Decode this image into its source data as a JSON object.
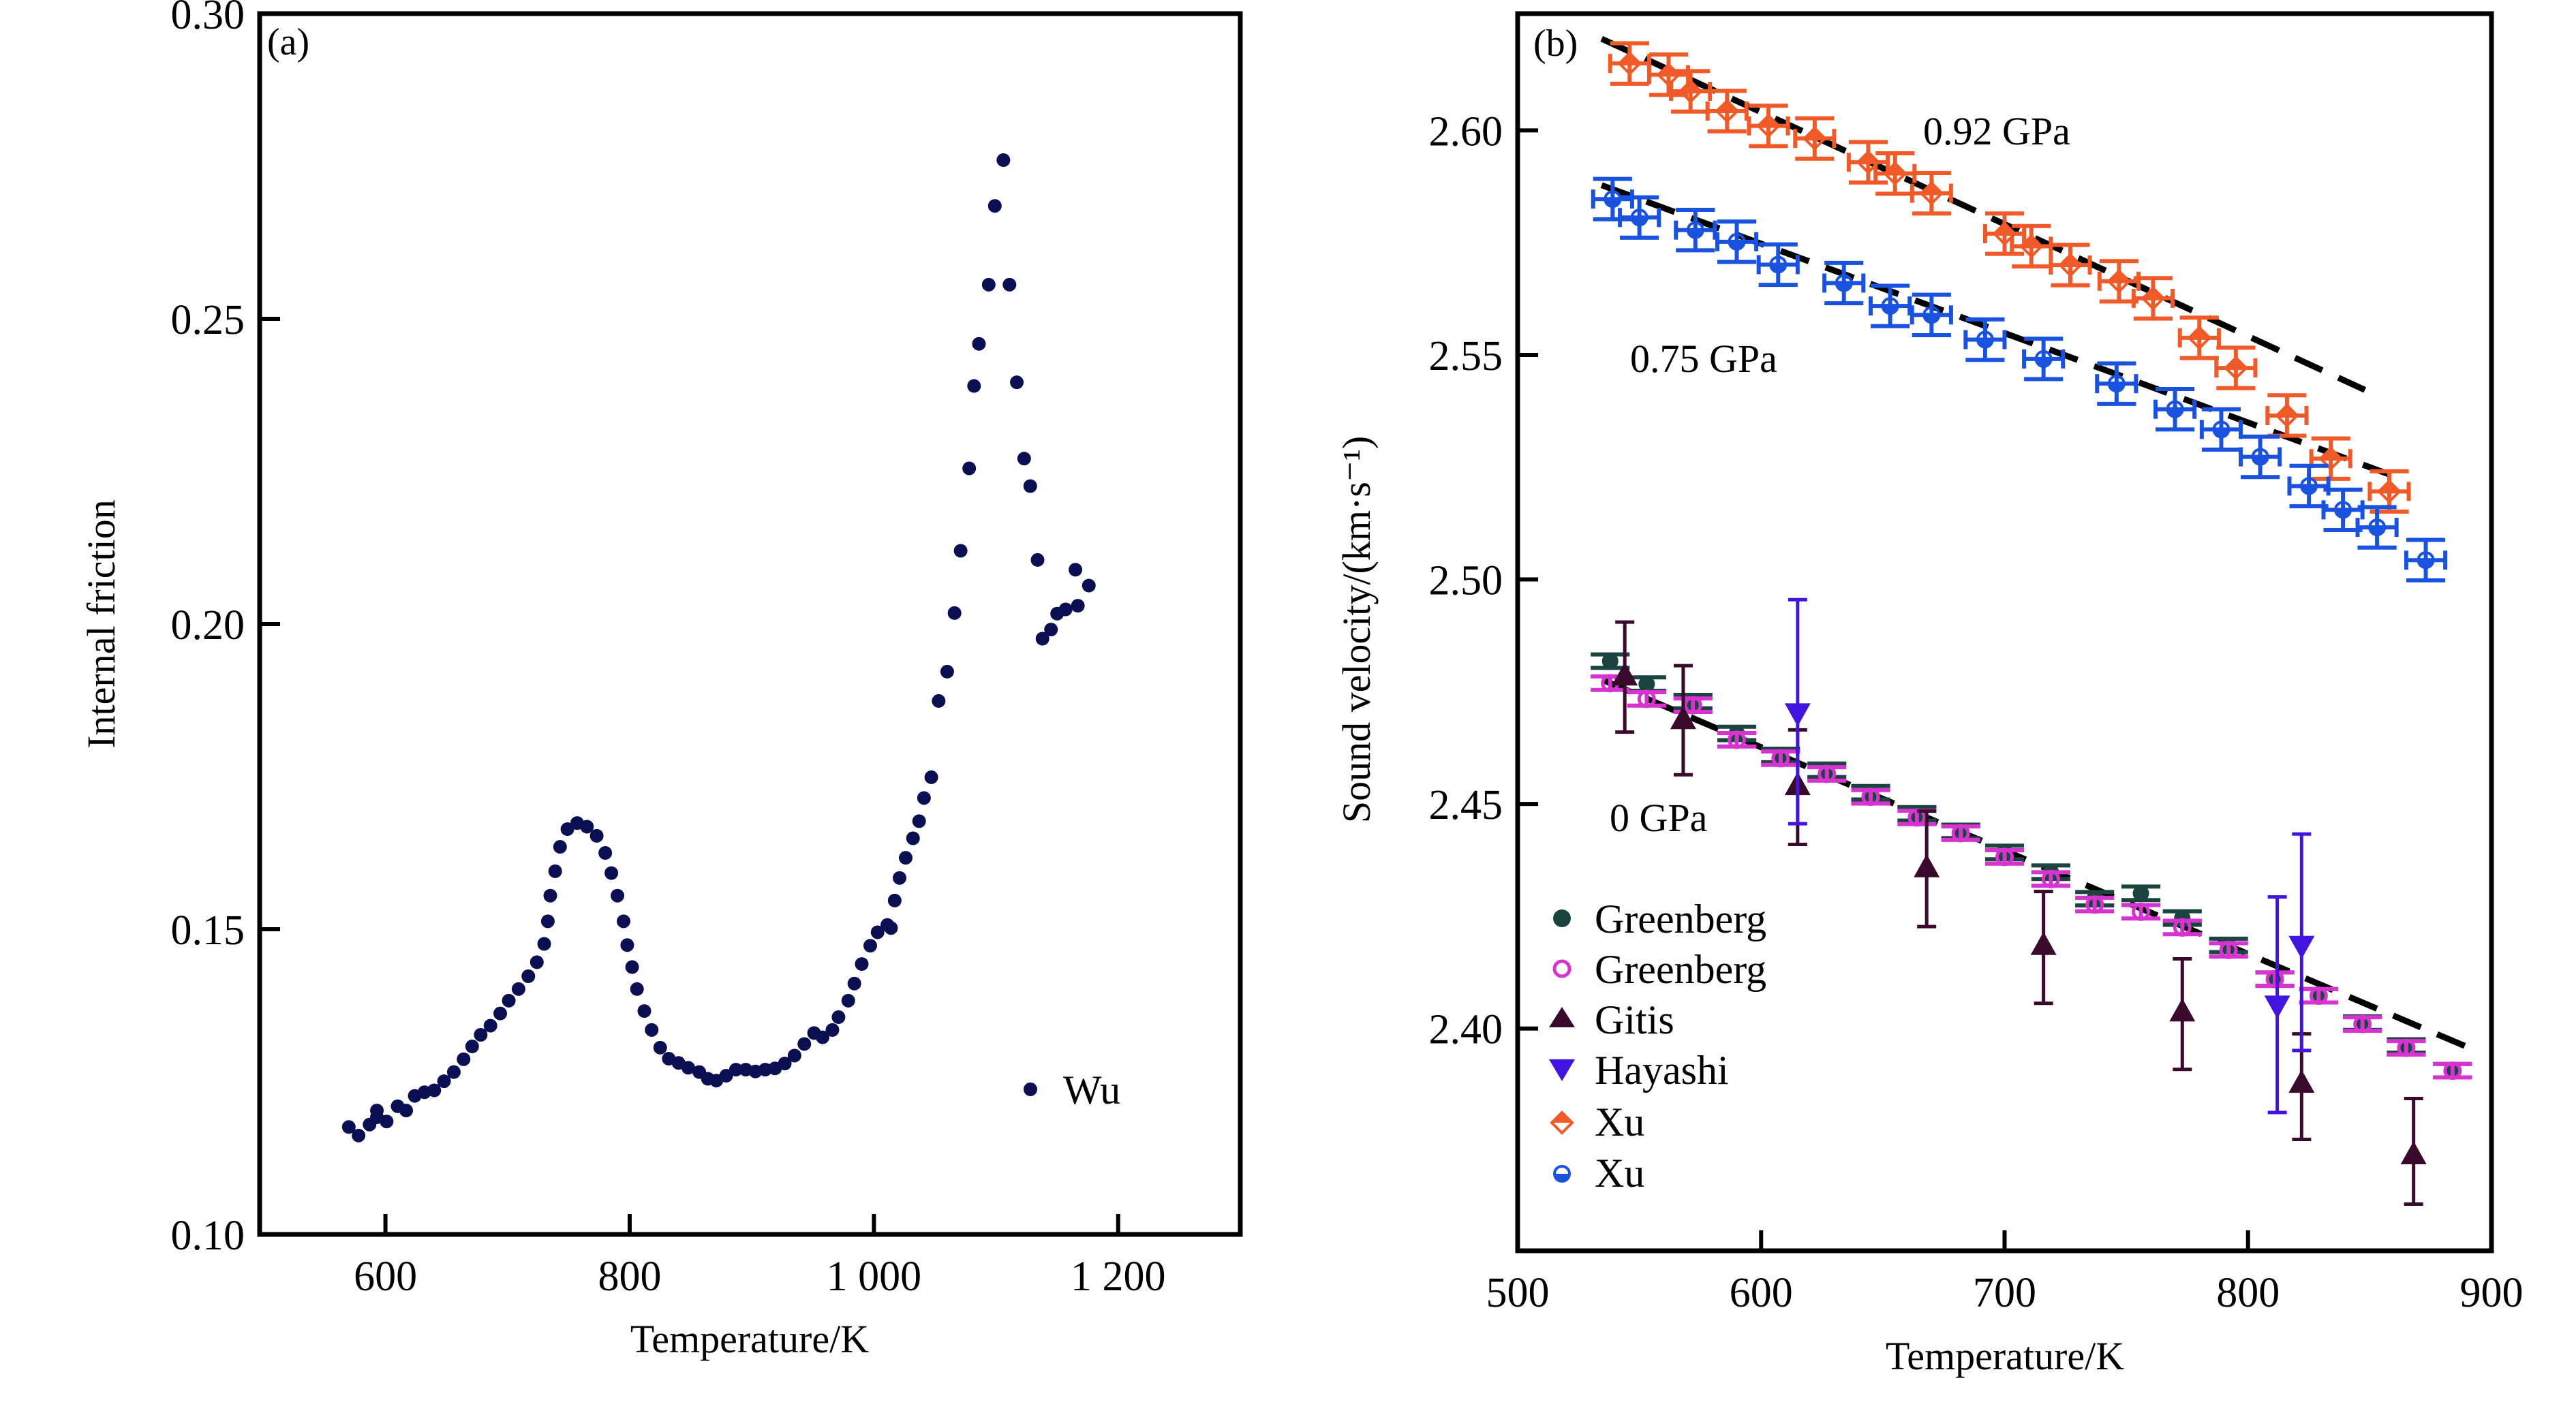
{
  "figure": {
    "panels": [
      "(a)",
      "(b)"
    ]
  },
  "chart_data": [
    {
      "id": "a",
      "type": "scatter",
      "panel_label": "(a)",
      "title": "",
      "xlabel": "Temperature/K",
      "ylabel": "Internal friction",
      "xlim": [
        497,
        1300
      ],
      "ylim": [
        0.1,
        0.3
      ],
      "xticks": [
        600,
        800,
        1000,
        1200
      ],
      "xtick_labels": [
        "600",
        "800",
        "1 000",
        "1 200"
      ],
      "yticks": [
        0.1,
        0.15,
        0.2,
        0.25,
        0.3
      ],
      "ytick_labels": [
        "0.10",
        "0.15",
        "0.20",
        "0.25",
        "0.30"
      ],
      "grid": false,
      "legend": {
        "placement": "bottom-right",
        "entries": [
          {
            "label": "Wu",
            "marker": "filled-circle",
            "color": "#0a0f52"
          }
        ]
      },
      "series": [
        {
          "name": "Wu",
          "marker": "filled-circle",
          "color": "#0a0f52",
          "x": [
            570,
            578,
            587,
            593,
            593,
            601,
            610,
            617,
            624,
            632,
            640,
            648,
            656,
            664,
            671,
            678,
            686,
            694,
            701,
            709,
            717,
            724,
            730,
            733,
            735,
            739,
            743,
            749,
            757,
            765,
            773,
            780,
            785,
            790,
            795,
            798,
            802,
            806,
            812,
            818,
            825,
            832,
            840,
            848,
            857,
            864,
            871,
            879,
            887,
            895,
            903,
            911,
            919,
            927,
            935,
            943,
            951,
            958,
            966,
            971,
            979,
            984,
            990,
            997,
            1003,
            1011,
            1014,
            1017,
            1021,
            1026,
            1032,
            1037,
            1041,
            1047,
            1053,
            1060,
            1066,
            1071,
            1078,
            1082,
            1086,
            1094,
            1099,
            1106,
            1111,
            1117,
            1123,
            1128,
            1134,
            1138,
            1145,
            1150,
            1157,
            1165,
            1167,
            1176
          ],
          "y": [
            0.1176,
            0.1162,
            0.118,
            0.1203,
            0.1192,
            0.1185,
            0.121,
            0.1203,
            0.1227,
            0.1233,
            0.1236,
            0.1251,
            0.1266,
            0.1287,
            0.1308,
            0.1327,
            0.1342,
            0.1362,
            0.1383,
            0.1402,
            0.1423,
            0.1446,
            0.1476,
            0.1513,
            0.1555,
            0.1595,
            0.1635,
            0.1664,
            0.1674,
            0.1668,
            0.1653,
            0.1625,
            0.1592,
            0.1555,
            0.1513,
            0.1474,
            0.1438,
            0.1402,
            0.1366,
            0.1335,
            0.1306,
            0.1288,
            0.1281,
            0.1273,
            0.1266,
            0.1255,
            0.1252,
            0.126,
            0.127,
            0.127,
            0.1267,
            0.127,
            0.1272,
            0.128,
            0.1293,
            0.1312,
            0.133,
            0.1323,
            0.1335,
            0.1356,
            0.1383,
            0.1411,
            0.1443,
            0.1473,
            0.1495,
            0.1507,
            0.1502,
            0.1547,
            0.1584,
            0.1617,
            0.1649,
            0.1677,
            0.1715,
            0.1749,
            0.1874,
            0.1922,
            0.2018,
            0.212,
            0.2255,
            0.239,
            0.2459,
            0.2556,
            0.2685,
            0.276,
            0.2556,
            0.2396,
            0.2271,
            0.2226,
            0.2105,
            0.1976,
            0.1991,
            0.2017,
            0.2024,
            0.2089,
            0.203,
            0.2063
          ]
        }
      ]
    },
    {
      "id": "b",
      "type": "scatter",
      "panel_label": "(b)",
      "title": "",
      "xlabel": "Temperature/K",
      "ylabel": "Sound velocity/(km·s⁻¹)",
      "xlim": [
        500,
        900
      ],
      "ylim": [
        2.3505,
        2.626
      ],
      "xticks": [
        500,
        600,
        700,
        800,
        900
      ],
      "xtick_labels": [
        "500",
        "600",
        "700",
        "800",
        "900"
      ],
      "yticks": [
        2.4,
        2.45,
        2.5,
        2.55,
        2.6
      ],
      "ytick_labels": [
        "2.40",
        "2.45",
        "2.50",
        "2.55",
        "2.60"
      ],
      "grid": false,
      "legend": {
        "placement": "bottom-left",
        "entries": [
          {
            "label": "Greenberg",
            "marker": "filled-circle",
            "color": "#1b4340"
          },
          {
            "label": "Greenberg",
            "marker": "open-circle",
            "color": "#d633d0"
          },
          {
            "label": "Gitis",
            "marker": "triangle-up",
            "color": "#3a0a2c"
          },
          {
            "label": "Hayashi",
            "marker": "triangle-down",
            "color": "#4214e0"
          },
          {
            "label": "Xu",
            "marker": "half-diamond",
            "color": "#f05a28"
          },
          {
            "label": "Xu",
            "marker": "half-circle",
            "color": "#1a52e0"
          }
        ]
      },
      "annotations": [
        {
          "text": "0.92 GPa",
          "x": 666,
          "y": 2.6
        },
        {
          "text": "0.75 GPa",
          "x": 545,
          "y": 2.549
        },
        {
          "text": "0 GPa",
          "x": 537,
          "y": 2.451
        }
      ],
      "fit_lines": [
        {
          "name": "0.92 GPa fit",
          "x": [
            534.5,
            848
          ],
          "y": [
            2.6204,
            2.5422
          ]
        },
        {
          "name": "0.75 GPa fit",
          "x": [
            534.5,
            859
          ],
          "y": [
            2.5878,
            2.5232
          ]
        },
        {
          "name": "0 GPa fit",
          "x": [
            535,
            893
          ],
          "y": [
            2.4776,
            2.3952
          ]
        }
      ],
      "series": [
        {
          "name": "Greenberg",
          "marker": "filled-circle",
          "color": "#1b4340",
          "xerr": 8,
          "yerr": 0.0015,
          "x": [
            538,
            553,
            572,
            590,
            608,
            627,
            645,
            664,
            682,
            700,
            719,
            737,
            756,
            773,
            792,
            811,
            829,
            847,
            865,
            884
          ],
          "y": [
            2.4818,
            2.4767,
            2.4728,
            2.4657,
            2.4608,
            2.4575,
            2.4525,
            2.4478,
            2.4439,
            2.4392,
            2.4348,
            2.4289,
            2.4301,
            2.4246,
            2.4185,
            2.411,
            2.4073,
            2.4012,
            2.3961,
            2.3906
          ]
        },
        {
          "name": "Greenberg",
          "marker": "open-circle",
          "color": "#d633d0",
          "xerr": 8,
          "yerr": 0.0015,
          "x": [
            538,
            553,
            572,
            590,
            608,
            627,
            645,
            664,
            682,
            700,
            719,
            737,
            756,
            773,
            792,
            811,
            829,
            847,
            865,
            884
          ],
          "y": [
            2.4769,
            2.4734,
            2.472,
            2.4643,
            2.4602,
            2.4567,
            2.4516,
            2.447,
            2.4435,
            2.4382,
            2.4333,
            2.4276,
            2.426,
            2.4225,
            2.4175,
            2.411,
            2.4073,
            2.401,
            2.3957,
            2.3906
          ]
        },
        {
          "name": "Gitis",
          "marker": "triangle-up",
          "color": "#3a0a2c",
          "x": [
            544,
            568,
            615,
            668,
            716,
            773,
            822,
            868
          ],
          "y": [
            2.4785,
            2.4688,
            2.4541,
            2.4358,
            2.4185,
            2.4037,
            2.3878,
            2.3719
          ],
          "y_low": [
            2.466,
            2.4565,
            2.441,
            2.4227,
            2.4056,
            2.3909,
            2.3753,
            2.3609
          ],
          "y_high": [
            2.4905,
            2.4808,
            2.4665,
            2.4484,
            2.4305,
            2.4155,
            2.3988,
            2.3844
          ]
        },
        {
          "name": "Hayashi",
          "marker": "triangle-down",
          "color": "#4214e0",
          "x": [
            615,
            812,
            822
          ],
          "y": [
            2.4703,
            2.4052,
            2.4185
          ],
          "y_low": [
            2.4456,
            2.3813,
            2.3951
          ],
          "y_high": [
            2.4955,
            2.4293,
            2.4433
          ]
        },
        {
          "name": "Xu",
          "pressure": "0.92 GPa",
          "marker": "half-diamond",
          "color": "#f05a28",
          "xerr": 8,
          "yerr": 0.0045,
          "x": [
            546,
            562,
            571,
            586,
            603,
            622,
            644,
            655,
            670,
            700,
            711,
            727,
            747,
            761,
            780,
            795,
            816,
            834,
            858
          ],
          "y": [
            2.6149,
            2.6124,
            2.6087,
            2.6043,
            2.601,
            2.5982,
            2.5929,
            2.5904,
            2.586,
            2.577,
            2.5742,
            2.57,
            2.5664,
            2.5626,
            2.5538,
            2.5471,
            2.5365,
            2.5269,
            2.5196
          ]
        },
        {
          "name": "Xu",
          "pressure": "0.75 GPa",
          "marker": "half-circle",
          "color": "#1a52e0",
          "xerr": 8,
          "yerr": 0.0045,
          "x": [
            539,
            550,
            573,
            590,
            607,
            634,
            653,
            670,
            692,
            716,
            746,
            770,
            789,
            805,
            825,
            839,
            853,
            873
          ],
          "y": [
            2.5847,
            2.5806,
            2.5778,
            2.5752,
            2.5701,
            2.566,
            2.5609,
            2.5589,
            2.5534,
            2.5491,
            2.5436,
            2.5379,
            2.5334,
            2.5273,
            2.5208,
            2.5155,
            2.5116,
            2.5043
          ]
        }
      ]
    }
  ]
}
